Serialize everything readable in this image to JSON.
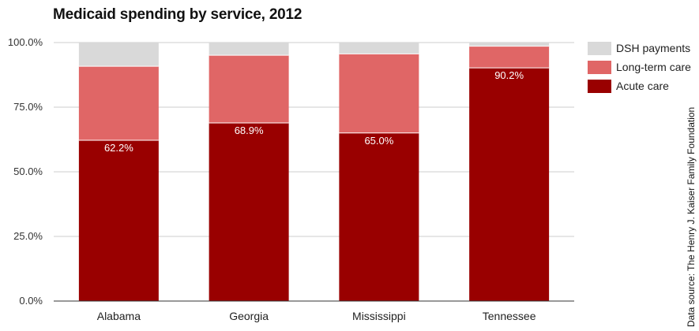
{
  "chart_data": {
    "type": "bar",
    "stacked": true,
    "title": "Medicaid spending by service, 2012",
    "source": "Data source: The Henry J. Kaiser Family Foundation",
    "categories": [
      "Alabama",
      "Georgia",
      "Mississippi",
      "Tennessee"
    ],
    "series": [
      {
        "name": "Acute care",
        "color": "#990000",
        "values": [
          62.2,
          68.9,
          65.0,
          90.2
        ],
        "labels": [
          "62.2%",
          "68.9%",
          "65.0%",
          "90.2%"
        ]
      },
      {
        "name": "Long-term care",
        "color": "#e06666",
        "values": [
          28.6,
          26.2,
          30.6,
          8.4
        ]
      },
      {
        "name": "DSH payments",
        "color": "#d9d9d9",
        "values": [
          9.2,
          4.9,
          4.4,
          1.4
        ]
      }
    ],
    "yticks": [
      "0.0%",
      "25.0%",
      "50.0%",
      "75.0%",
      "100.0%"
    ],
    "ylim": [
      0,
      100
    ],
    "grid": true,
    "legend_position": "right",
    "legend_order": [
      "DSH payments",
      "Long-term care",
      "Acute care"
    ]
  }
}
